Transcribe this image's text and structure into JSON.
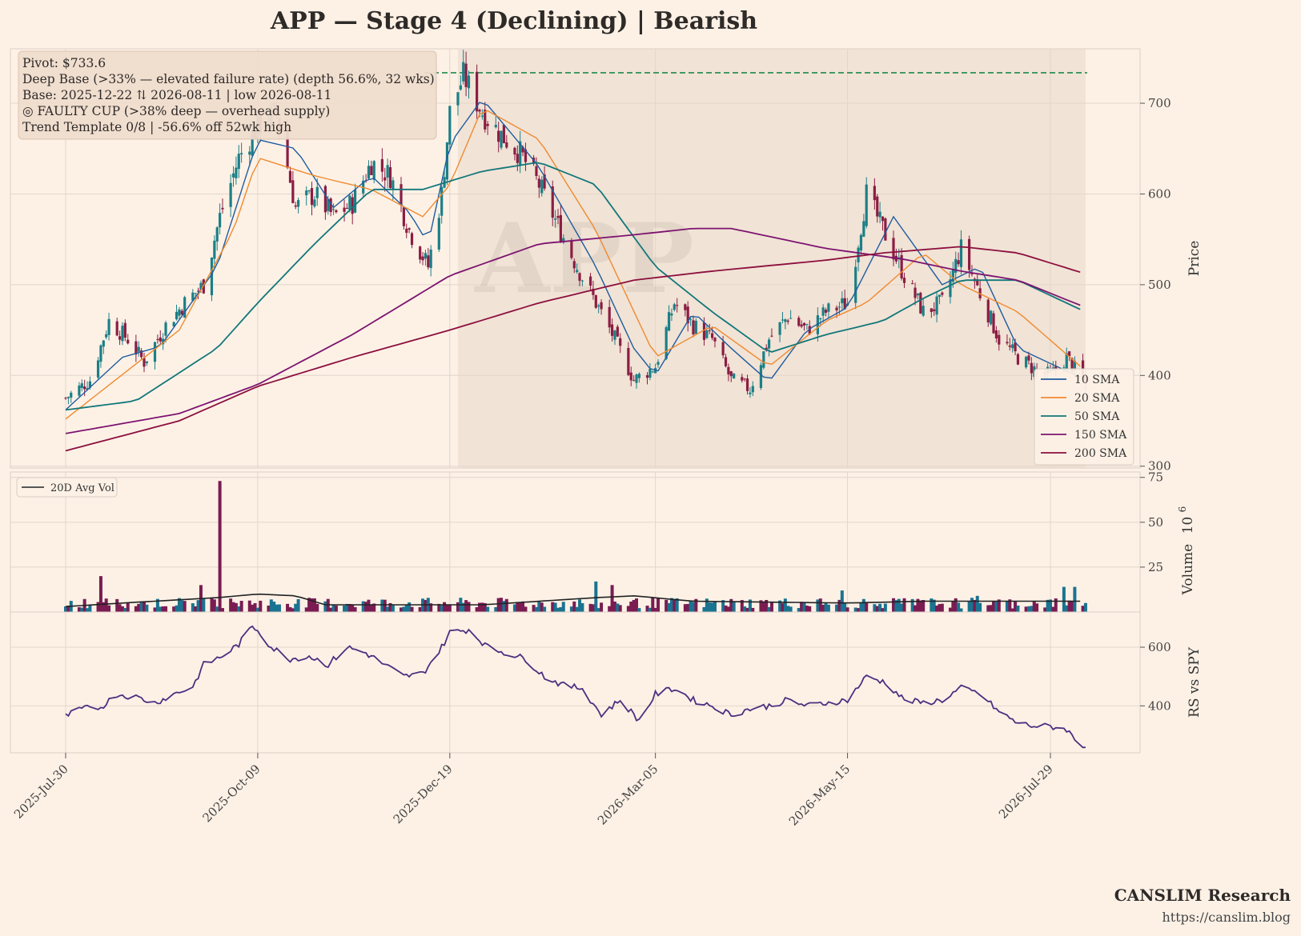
{
  "chart_data": {
    "type": "candlestick",
    "title": "APP  —  Stage 4 (Declining)  |  Bearish",
    "colors": {
      "background": "#fdf1e6",
      "up": "#1b7f86",
      "down": "#8b1d43",
      "base_shade": "#e6d5c6",
      "pivot_line": "#1e8a4c",
      "sma10": "#1f5c9e",
      "sma20": "#f08a2e",
      "sma50": "#12777a",
      "sma150": "#7d1470",
      "sma200": "#8c0f3e",
      "vol_avg": "#222222",
      "rs_line": "#4d2f80",
      "vol_up": "#1a7390",
      "vol_down": "#7a1c52",
      "grid": "#e2d6cb"
    },
    "watermark": "APP",
    "info_box": [
      "Pivot: $733.6",
      "Deep Base (>33% — elevated failure rate)  (depth 56.6%, 32 wks)",
      "Base: 2025-12-22 ⇅ 2026-08-11  |  low 2026-08-11",
      "◎ FAULTY CUP (>38% deep — overhead supply)",
      "Trend Template 0/8  |  -56.6% off 52wk high"
    ],
    "x_ticks": [
      "2025-Jul-30",
      "2025-Oct-09",
      "2025-Dec-19",
      "2026-Mar-05",
      "2026-May-15",
      "2026-Jul-29"
    ],
    "price_panel": {
      "ylabel": "Price",
      "ylim": [
        298,
        760
      ],
      "yticks": [
        300,
        400,
        500,
        600,
        700
      ],
      "pivot": 733.6,
      "base_start": "2025-12-22",
      "base_end": "2026-08-11",
      "legend": [
        "10 SMA",
        "20 SMA",
        "50 SMA",
        "150 SMA",
        "200 SMA"
      ],
      "legend_position": "lower-right",
      "close_path": [
        [
          "2025-07-30",
          375
        ],
        [
          "2025-08-08",
          395
        ],
        [
          "2025-08-15",
          460
        ],
        [
          "2025-08-22",
          440
        ],
        [
          "2025-08-28",
          415
        ],
        [
          "2025-09-05",
          455
        ],
        [
          "2025-09-12",
          480
        ],
        [
          "2025-09-19",
          500
        ],
        [
          "2025-09-25",
          575
        ],
        [
          "2025-10-02",
          640
        ],
        [
          "2025-10-09",
          675
        ],
        [
          "2025-10-16",
          690
        ],
        [
          "2025-10-23",
          585
        ],
        [
          "2025-10-30",
          600
        ],
        [
          "2025-11-06",
          575
        ],
        [
          "2025-11-13",
          590
        ],
        [
          "2025-11-20",
          635
        ],
        [
          "2025-11-27",
          620
        ],
        [
          "2025-12-04",
          560
        ],
        [
          "2025-12-11",
          520
        ],
        [
          "2025-12-16",
          600
        ],
        [
          "2025-12-19",
          690
        ],
        [
          "2025-12-24",
          730
        ],
        [
          "2025-12-31",
          690
        ],
        [
          "2026-01-07",
          665
        ],
        [
          "2026-01-14",
          645
        ],
        [
          "2026-01-21",
          610
        ],
        [
          "2026-01-28",
          565
        ],
        [
          "2026-02-04",
          520
        ],
        [
          "2026-02-11",
          480
        ],
        [
          "2026-02-18",
          440
        ],
        [
          "2026-02-25",
          395
        ],
        [
          "2026-03-05",
          410
        ],
        [
          "2026-03-12",
          480
        ],
        [
          "2026-03-19",
          455
        ],
        [
          "2026-03-26",
          440
        ],
        [
          "2026-04-02",
          395
        ],
        [
          "2026-04-09",
          385
        ],
        [
          "2026-04-16",
          440
        ],
        [
          "2026-04-23",
          465
        ],
        [
          "2026-04-30",
          450
        ],
        [
          "2026-05-07",
          470
        ],
        [
          "2026-05-15",
          480
        ],
        [
          "2026-05-22",
          600
        ],
        [
          "2026-05-29",
          555
        ],
        [
          "2026-06-05",
          510
        ],
        [
          "2026-06-12",
          470
        ],
        [
          "2026-06-19",
          480
        ],
        [
          "2026-06-26",
          540
        ],
        [
          "2026-07-03",
          490
        ],
        [
          "2026-07-10",
          440
        ],
        [
          "2026-07-17",
          420
        ],
        [
          "2026-07-24",
          405
        ],
        [
          "2026-07-29",
          400
        ],
        [
          "2026-08-04",
          420
        ],
        [
          "2026-08-11",
          390
        ]
      ],
      "sma10": [
        [
          "2025-07-30",
          362
        ],
        [
          "2025-08-20",
          420
        ],
        [
          "2025-09-03",
          432
        ],
        [
          "2025-09-24",
          520
        ],
        [
          "2025-10-09",
          660
        ],
        [
          "2025-10-23",
          650
        ],
        [
          "2025-11-06",
          585
        ],
        [
          "2025-11-20",
          620
        ],
        [
          "2025-12-04",
          580
        ],
        [
          "2025-12-11",
          545
        ],
        [
          "2025-12-19",
          655
        ],
        [
          "2025-12-31",
          705
        ],
        [
          "2026-01-21",
          630
        ],
        [
          "2026-02-11",
          520
        ],
        [
          "2026-02-25",
          430
        ],
        [
          "2026-03-05",
          400
        ],
        [
          "2026-03-19",
          470
        ],
        [
          "2026-04-02",
          430
        ],
        [
          "2026-04-16",
          393
        ],
        [
          "2026-04-30",
          450
        ],
        [
          "2026-05-15",
          475
        ],
        [
          "2026-06-01",
          575
        ],
        [
          "2026-06-19",
          500
        ],
        [
          "2026-07-03",
          520
        ],
        [
          "2026-07-17",
          430
        ],
        [
          "2026-08-11",
          395
        ]
      ],
      "sma20": [
        [
          "2025-07-30",
          352
        ],
        [
          "2025-09-10",
          450
        ],
        [
          "2025-09-30",
          560
        ],
        [
          "2025-10-09",
          640
        ],
        [
          "2025-10-30",
          620
        ],
        [
          "2025-11-20",
          605
        ],
        [
          "2025-12-09",
          575
        ],
        [
          "2025-12-19",
          610
        ],
        [
          "2025-12-31",
          695
        ],
        [
          "2026-01-21",
          660
        ],
        [
          "2026-02-11",
          560
        ],
        [
          "2026-03-05",
          420
        ],
        [
          "2026-03-26",
          455
        ],
        [
          "2026-04-16",
          410
        ],
        [
          "2026-05-07",
          460
        ],
        [
          "2026-05-22",
          480
        ],
        [
          "2026-06-12",
          535
        ],
        [
          "2026-06-26",
          500
        ],
        [
          "2026-07-17",
          470
        ],
        [
          "2026-08-11",
          405
        ]
      ],
      "sma50": [
        [
          "2025-07-30",
          362
        ],
        [
          "2025-08-25",
          372
        ],
        [
          "2025-09-24",
          430
        ],
        [
          "2025-10-09",
          480
        ],
        [
          "2025-10-30",
          545
        ],
        [
          "2025-11-20",
          605
        ],
        [
          "2025-12-09",
          605
        ],
        [
          "2025-12-31",
          625
        ],
        [
          "2026-01-21",
          635
        ],
        [
          "2026-02-11",
          610
        ],
        [
          "2026-03-05",
          520
        ],
        [
          "2026-03-26",
          470
        ],
        [
          "2026-04-16",
          425
        ],
        [
          "2026-05-07",
          445
        ],
        [
          "2026-05-28",
          460
        ],
        [
          "2026-06-12",
          485
        ],
        [
          "2026-06-26",
          505
        ],
        [
          "2026-07-17",
          505
        ],
        [
          "2026-08-11",
          470
        ]
      ],
      "sma150": [
        [
          "2025-07-30",
          336
        ],
        [
          "2025-09-10",
          358
        ],
        [
          "2025-10-09",
          390
        ],
        [
          "2025-11-13",
          445
        ],
        [
          "2025-12-19",
          510
        ],
        [
          "2026-01-21",
          545
        ],
        [
          "2026-02-25",
          555
        ],
        [
          "2026-03-19",
          562
        ],
        [
          "2026-04-02",
          562
        ],
        [
          "2026-05-07",
          540
        ],
        [
          "2026-06-05",
          528
        ],
        [
          "2026-06-26",
          515
        ],
        [
          "2026-07-17",
          505
        ],
        [
          "2026-08-11",
          475
        ]
      ],
      "sma200": [
        [
          "2025-07-30",
          317
        ],
        [
          "2025-09-10",
          350
        ],
        [
          "2025-10-09",
          388
        ],
        [
          "2025-11-13",
          420
        ],
        [
          "2025-12-19",
          450
        ],
        [
          "2026-01-21",
          480
        ],
        [
          "2026-02-25",
          505
        ],
        [
          "2026-03-26",
          515
        ],
        [
          "2026-05-07",
          527
        ],
        [
          "2026-05-28",
          535
        ],
        [
          "2026-06-26",
          542
        ],
        [
          "2026-07-17",
          535
        ],
        [
          "2026-08-11",
          512
        ]
      ]
    },
    "volume_panel": {
      "ylabel": "Volume",
      "scale_label": "10",
      "scale_exp": "6",
      "ylim": [
        0,
        78
      ],
      "yticks": [
        25,
        50,
        75
      ],
      "legend": [
        "20D Avg Vol"
      ],
      "legend_position": "top-left",
      "spikes": [
        [
          "2025-08-12",
          20
        ],
        [
          "2025-09-18",
          15
        ],
        [
          "2025-09-22",
          8
        ],
        [
          "2025-09-25",
          73
        ],
        [
          "2026-02-11",
          17
        ],
        [
          "2026-02-17",
          15
        ],
        [
          "2026-05-13",
          12
        ],
        [
          "2026-07-02",
          9
        ],
        [
          "2026-08-03",
          14
        ],
        [
          "2026-08-07",
          14
        ]
      ],
      "avg": [
        [
          "2025-07-30",
          3
        ],
        [
          "2025-08-20",
          5
        ],
        [
          "2025-09-24",
          8
        ],
        [
          "2025-10-09",
          10
        ],
        [
          "2025-10-23",
          9
        ],
        [
          "2025-11-03",
          4
        ],
        [
          "2025-12-31",
          4
        ],
        [
          "2026-02-11",
          8
        ],
        [
          "2026-02-25",
          9
        ],
        [
          "2026-03-19",
          6
        ],
        [
          "2026-05-15",
          5
        ],
        [
          "2026-06-12",
          6
        ],
        [
          "2026-08-11",
          6
        ]
      ]
    },
    "rs_panel": {
      "ylabel": "RS vs SPY",
      "ylim": [
        240,
        720
      ],
      "yticks": [
        400,
        600
      ],
      "line": [
        [
          "2025-07-30",
          365
        ],
        [
          "2025-08-05",
          390
        ],
        [
          "2025-08-12",
          395
        ],
        [
          "2025-08-18",
          440
        ],
        [
          "2025-08-25",
          430
        ],
        [
          "2025-09-01",
          410
        ],
        [
          "2025-09-08",
          440
        ],
        [
          "2025-09-15",
          465
        ],
        [
          "2025-09-19",
          540
        ],
        [
          "2025-09-26",
          570
        ],
        [
          "2025-10-02",
          610
        ],
        [
          "2025-10-07",
          670
        ],
        [
          "2025-10-09",
          660
        ],
        [
          "2025-10-14",
          600
        ],
        [
          "2025-10-21",
          560
        ],
        [
          "2025-10-28",
          570
        ],
        [
          "2025-11-04",
          540
        ],
        [
          "2025-11-11",
          600
        ],
        [
          "2025-11-18",
          580
        ],
        [
          "2025-11-25",
          540
        ],
        [
          "2025-12-02",
          500
        ],
        [
          "2025-12-09",
          510
        ],
        [
          "2025-12-16",
          600
        ],
        [
          "2025-12-19",
          650
        ],
        [
          "2025-12-26",
          660
        ],
        [
          "2026-01-02",
          600
        ],
        [
          "2026-01-09",
          580
        ],
        [
          "2026-01-16",
          560
        ],
        [
          "2026-01-23",
          500
        ],
        [
          "2026-01-30",
          470
        ],
        [
          "2026-02-06",
          460
        ],
        [
          "2026-02-13",
          370
        ],
        [
          "2026-02-20",
          420
        ],
        [
          "2026-02-27",
          350
        ],
        [
          "2026-03-05",
          440
        ],
        [
          "2026-03-12",
          460
        ],
        [
          "2026-03-19",
          420
        ],
        [
          "2026-03-26",
          400
        ],
        [
          "2026-04-02",
          370
        ],
        [
          "2026-04-09",
          390
        ],
        [
          "2026-04-16",
          400
        ],
        [
          "2026-04-23",
          420
        ],
        [
          "2026-04-30",
          400
        ],
        [
          "2026-05-07",
          410
        ],
        [
          "2026-05-15",
          420
        ],
        [
          "2026-05-22",
          500
        ],
        [
          "2026-05-29",
          480
        ],
        [
          "2026-06-05",
          420
        ],
        [
          "2026-06-12",
          410
        ],
        [
          "2026-06-19",
          420
        ],
        [
          "2026-06-26",
          460
        ],
        [
          "2026-07-03",
          440
        ],
        [
          "2026-07-10",
          380
        ],
        [
          "2026-07-17",
          340
        ],
        [
          "2026-07-24",
          330
        ],
        [
          "2026-07-29",
          330
        ],
        [
          "2026-08-04",
          320
        ],
        [
          "2026-08-08",
          275
        ],
        [
          "2026-08-11",
          262
        ]
      ]
    }
  },
  "footer": {
    "brand": "CANSLIM Research",
    "url": "https://canslim.blog"
  }
}
